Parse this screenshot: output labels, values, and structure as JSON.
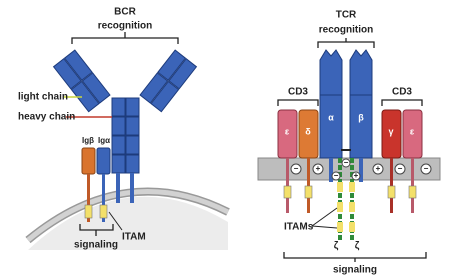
{
  "bcr": {
    "title": "BCR",
    "subtitle": "recognition",
    "light_chain": "light chain",
    "heavy_chain": "heavy chain",
    "ig_beta": "Igβ",
    "ig_alpha": "Igα",
    "itam": "ITAM",
    "signaling": "signaling"
  },
  "tcr": {
    "title": "TCR",
    "subtitle": "recognition",
    "cd3_left": "CD3",
    "cd3_right": "CD3",
    "chains": [
      "ε",
      "δ",
      "α",
      "β",
      "γ",
      "ε"
    ],
    "charges": [
      "−",
      "+",
      "−",
      "−",
      "+",
      "+",
      "−",
      "−"
    ],
    "itams": "ITAMs",
    "zeta": [
      "ζ",
      "ζ"
    ],
    "signaling": "signaling"
  }
}
